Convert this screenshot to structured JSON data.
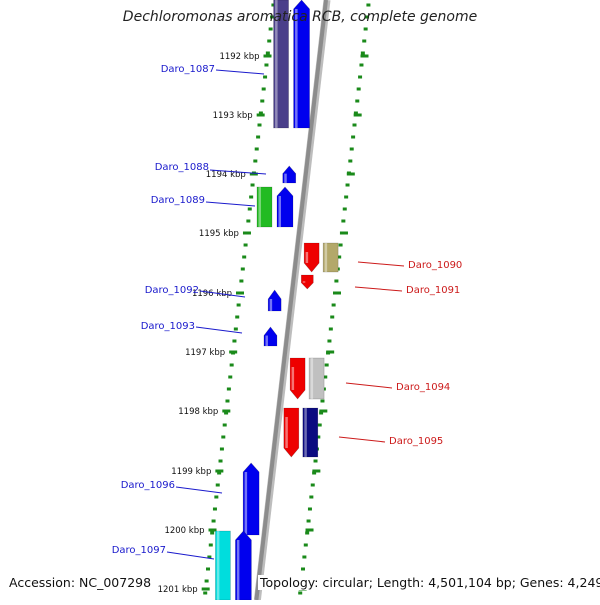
{
  "title": "Dechloromonas aromatica RCB, complete genome",
  "footer": {
    "accession": "Accession: NC_007298",
    "summary": "Topology: circular; Length: 4,501,104 bp; Genes: 4,249"
  },
  "colors": {
    "backbone": "#8c8c8c",
    "ticks": "#1a8a1a",
    "forward_label": "#1a1acc",
    "reverse_label": "#cc1a1a"
  },
  "ruler": {
    "unit": "kbp",
    "labels": [
      "1192 kbp",
      "1193 kbp",
      "1194 kbp",
      "1195 kbp",
      "1196 kbp",
      "1197 kbp",
      "1198 kbp",
      "1199 kbp",
      "1200 kbp",
      "1201 kbp"
    ]
  },
  "genes": [
    {
      "label": "Daro_1087",
      "strand": "forward",
      "colors": [
        "#4a3f8a",
        "#0000ee"
      ]
    },
    {
      "label": "Daro_1088",
      "strand": "forward",
      "colors": [
        "#0000ee"
      ]
    },
    {
      "label": "Daro_1089",
      "strand": "forward",
      "colors": [
        "#22bb22",
        "#0000ee"
      ]
    },
    {
      "label": "Daro_1090",
      "strand": "reverse",
      "colors": [
        "#ee0000",
        "#b3a86a"
      ]
    },
    {
      "label": "Daro_1091",
      "strand": "reverse",
      "colors": [
        "#ee0000"
      ]
    },
    {
      "label": "Daro_1092",
      "strand": "forward",
      "colors": [
        "#0000ee"
      ]
    },
    {
      "label": "Daro_1093",
      "strand": "forward",
      "colors": [
        "#0000ee"
      ]
    },
    {
      "label": "Daro_1094",
      "strand": "reverse",
      "colors": [
        "#ee0000",
        "#c0c0c0"
      ]
    },
    {
      "label": "Daro_1095",
      "strand": "reverse",
      "colors": [
        "#ee0000",
        "#0b0b80"
      ]
    },
    {
      "label": "Daro_1096",
      "strand": "forward",
      "colors": [
        "#0000ee"
      ]
    },
    {
      "label": "Daro_1097",
      "strand": "forward",
      "colors": [
        "#00dddd",
        "#0000ee"
      ]
    }
  ]
}
